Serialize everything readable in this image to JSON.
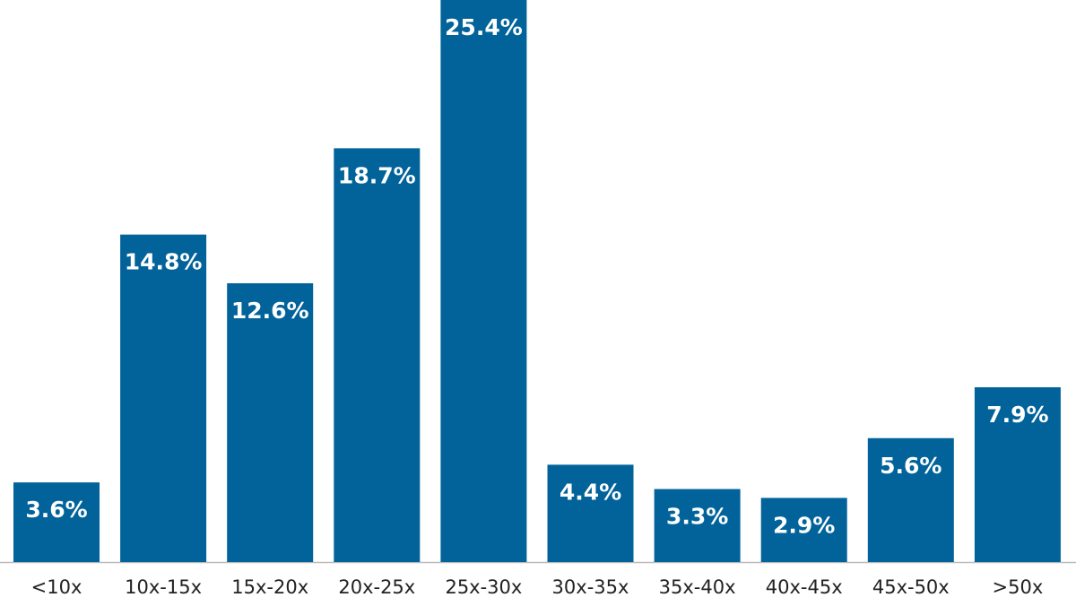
{
  "chart_data": {
    "type": "bar",
    "categories": [
      "<10x",
      "10x-15x",
      "15x-20x",
      "20x-25x",
      "25x-30x",
      "30x-35x",
      "35x-40x",
      "40x-45x",
      "45x-50x",
      ">50x"
    ],
    "values": [
      3.6,
      14.8,
      12.6,
      18.7,
      25.4,
      4.4,
      3.3,
      2.9,
      5.6,
      7.9
    ],
    "value_labels": [
      "3.6%",
      "14.8%",
      "12.6%",
      "18.7%",
      "25.4%",
      "4.4%",
      "3.3%",
      "2.9%",
      "5.6%",
      "7.9%"
    ],
    "color": "#02639a"
  }
}
